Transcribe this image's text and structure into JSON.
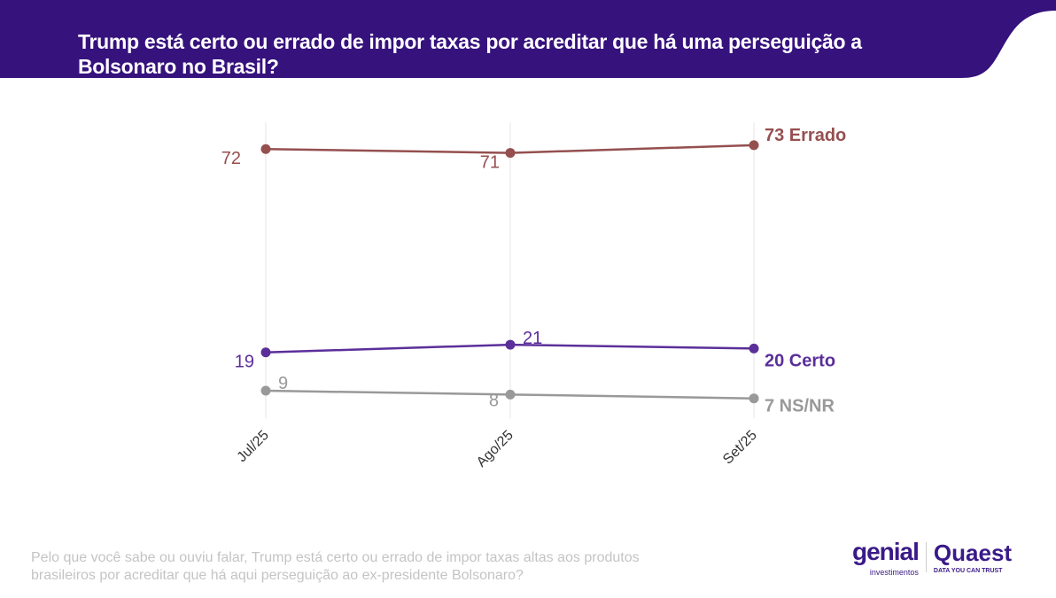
{
  "header": {
    "title": "Trump está certo ou errado de impor taxas por acreditar que há uma perseguição a Bolsonaro no Brasil?"
  },
  "colors": {
    "banner": "#36127d",
    "errado": "#954f4f",
    "certo": "#5b2f9a",
    "nsnr": "#999999"
  },
  "chart_data": {
    "type": "line",
    "title": "Trump está certo ou errado de impor taxas por acreditar que há uma perseguição a Bolsonaro no Brasil?",
    "categories": [
      "Jul/25",
      "Ago/25",
      "Set/25"
    ],
    "series": [
      {
        "name": "Errado",
        "values": [
          72,
          71,
          73
        ],
        "end_label": "73 Errado",
        "color": "#954f4f"
      },
      {
        "name": "Certo",
        "values": [
          19,
          21,
          20
        ],
        "end_label": "20 Certo",
        "color": "#5b2f9a"
      },
      {
        "name": "NS/NR",
        "values": [
          9,
          8,
          7
        ],
        "end_label": "7 NS/NR",
        "color": "#999999"
      }
    ],
    "grid": "vertical",
    "ylim": [
      0,
      80
    ]
  },
  "footnote": "Pelo que você sabe ou ouviu falar, Trump está certo ou errado de impor taxas altas aos produtos brasileiros por acreditar que há aqui perseguição ao ex-presidente Bolsonaro?",
  "logos": {
    "genial": "genial",
    "genial_sub": "investimentos",
    "quaest": "Quaest",
    "quaest_sub": "DATA YOU CAN TRUST"
  }
}
